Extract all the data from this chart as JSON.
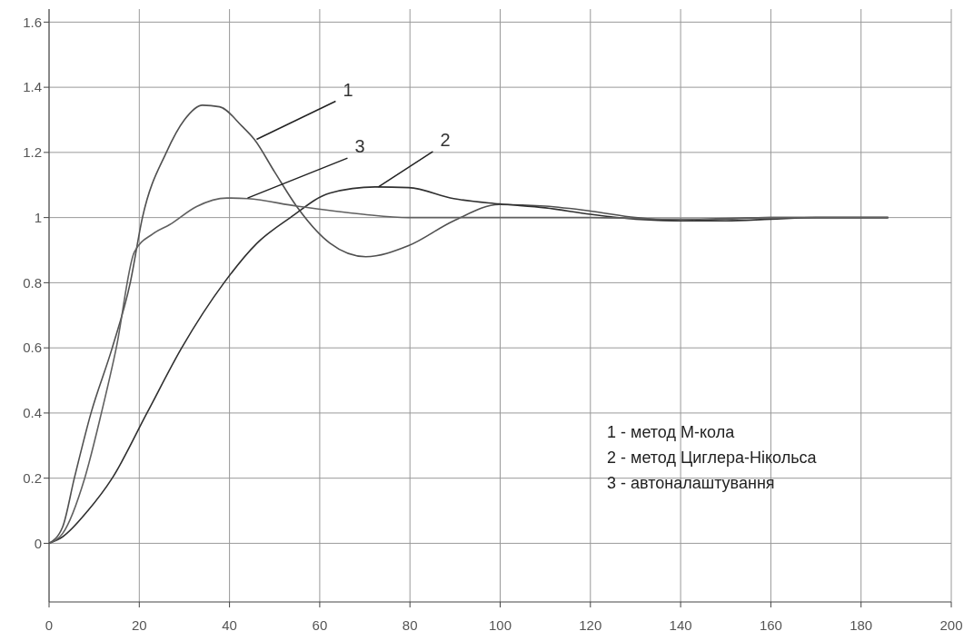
{
  "chart_data": {
    "type": "line",
    "xlim": [
      0,
      200
    ],
    "xticks": [
      0,
      20,
      40,
      60,
      80,
      100,
      120,
      140,
      160,
      180,
      200
    ],
    "ylim": [
      -0.18,
      1.64
    ],
    "yticks": [
      0,
      0.2,
      0.4,
      0.6,
      0.8,
      1,
      1.2,
      1.4,
      1.6
    ],
    "grid": true,
    "marker": "none",
    "line_style": "solid",
    "series": [
      {
        "color": "#505050",
        "x": [
          0,
          3,
          5.6,
          9.3,
          14,
          18,
          20.7,
          26,
          30,
          34,
          37.8,
          42.8,
          45.5,
          50,
          54.8,
          62.2,
          70.2,
          79.7,
          89.7,
          99.8,
          110,
          120,
          130,
          140,
          150,
          160,
          170,
          186
        ],
        "values": [
          0,
          0.05,
          0.2,
          0.4,
          0.6,
          0.8,
          1.0,
          1.2,
          1.3,
          1.345,
          1.34,
          1.28,
          1.24,
          1.14,
          1.036,
          0.922,
          0.88,
          0.914,
          0.99,
          1.04,
          1.035,
          1.02,
          1.0,
          0.99,
          0.995,
          1.0,
          1.0,
          1.0
        ]
      },
      {
        "color": "#303030",
        "x": [
          0,
          3,
          8.6,
          14,
          21.7,
          29.4,
          38.8,
          46,
          53.5,
          62.2,
          72.3,
          79.7,
          89.7,
          99.8,
          110,
          120,
          130,
          140,
          150,
          160,
          170,
          186
        ],
        "values": [
          0,
          0.02,
          0.1,
          0.2,
          0.4,
          0.6,
          0.8,
          0.92,
          1.0,
          1.075,
          1.094,
          1.092,
          1.058,
          1.042,
          1.03,
          1.01,
          0.995,
          0.99,
          0.99,
          0.995,
          1.0,
          1.0
        ]
      },
      {
        "color": "#606060",
        "x": [
          0,
          3,
          7.9,
          11.6,
          14.9,
          18.9,
          23,
          26.7,
          32.7,
          39.4,
          44,
          54.9,
          69.6,
          79.7,
          100,
          120,
          140,
          160,
          186
        ],
        "values": [
          0,
          0.03,
          0.2,
          0.4,
          0.6,
          0.894,
          0.95,
          0.978,
          1.034,
          1.06,
          1.058,
          1.035,
          1.01,
          1.0,
          1.0,
          1.0,
          0.995,
          1.0,
          1.0
        ]
      }
    ],
    "annotations": [
      {
        "text": "1",
        "x": 46,
        "y": 1.24
      },
      {
        "text": "2",
        "x": 73,
        "y": 1.094
      },
      {
        "text": "3",
        "x": 44,
        "y": 1.06
      },
      "1 - метод М-кола",
      "2 - метод Циглера-Нікольса",
      "3 - автоналаштування"
    ]
  }
}
